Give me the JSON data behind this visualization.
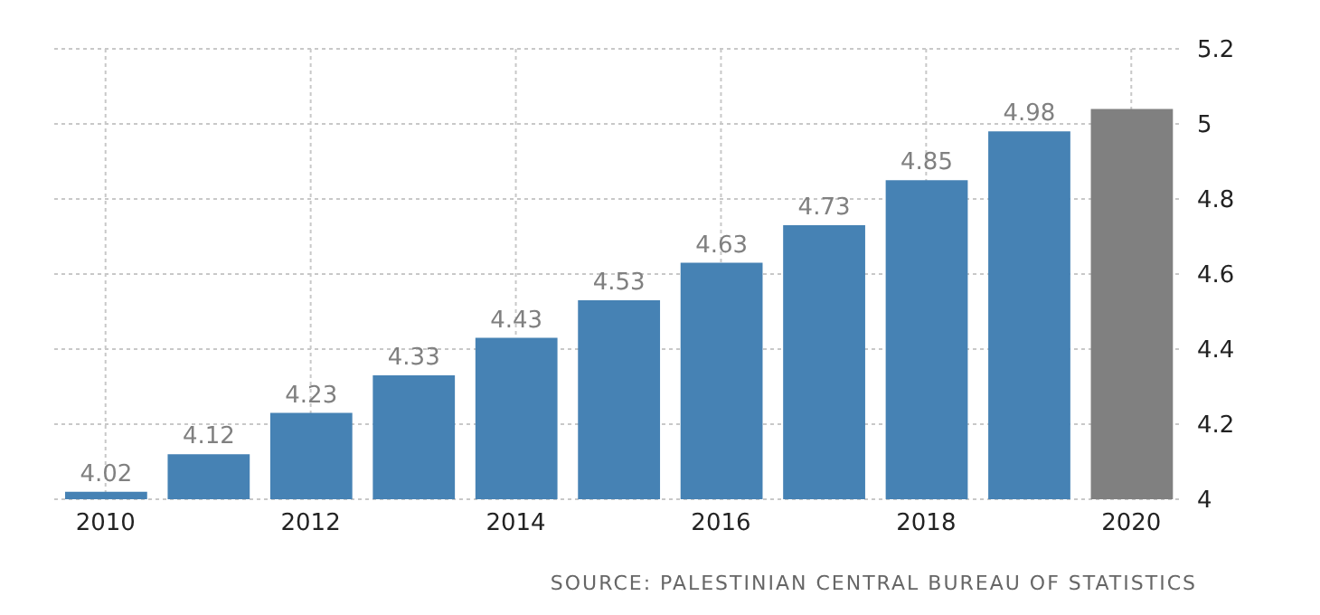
{
  "chart_data": {
    "type": "bar",
    "categories": [
      "2010",
      null,
      "2012",
      null,
      "2014",
      null,
      "2016",
      null,
      "2018",
      null,
      "2020"
    ],
    "values": [
      4.02,
      4.12,
      4.23,
      4.33,
      4.43,
      4.53,
      4.63,
      4.73,
      4.85,
      4.98,
      5.04
    ],
    "value_labels": [
      "4.02",
      "4.12",
      "4.23",
      "4.33",
      "4.43",
      "4.53",
      "4.63",
      "4.73",
      "4.85",
      "4.98",
      null
    ],
    "colors": [
      "#4682b4",
      "#4682b4",
      "#4682b4",
      "#4682b4",
      "#4682b4",
      "#4682b4",
      "#4682b4",
      "#4682b4",
      "#4682b4",
      "#4682b4",
      "#808080"
    ],
    "ylim": [
      4,
      5.2
    ],
    "yticks": [
      4,
      4.2,
      4.4,
      4.6,
      4.8,
      5,
      5.2
    ],
    "grid": true,
    "annotations": [
      "SOURCE: PALESTINIAN CENTRAL BUREAU OF STATISTICS"
    ]
  }
}
